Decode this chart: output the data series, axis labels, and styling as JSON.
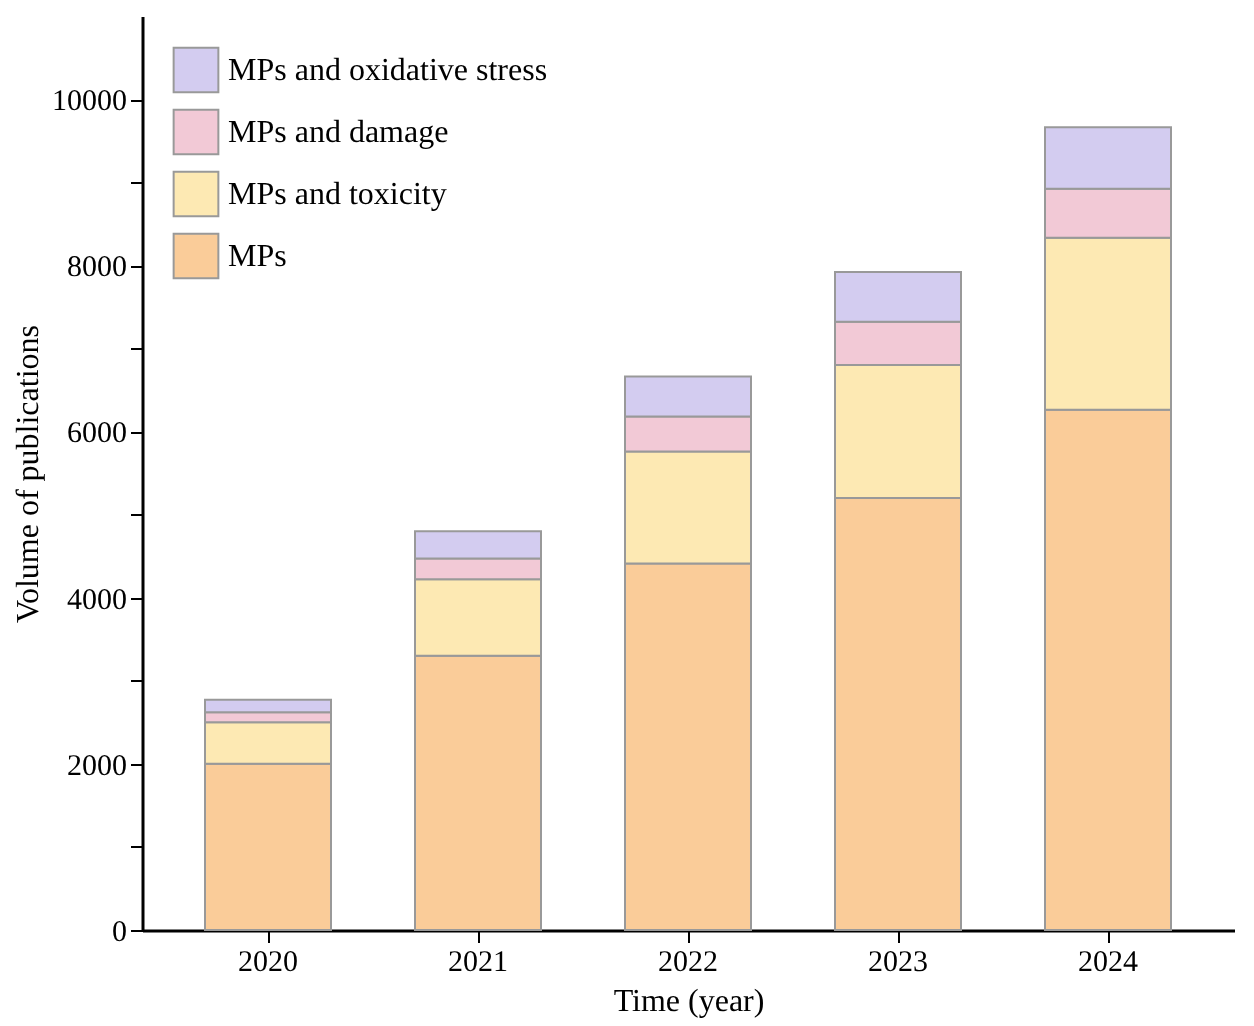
{
  "chart_data": {
    "type": "bar",
    "stacked": true,
    "xlabel": "Time (year)",
    "ylabel": "Volume of publications",
    "categories": [
      "2020",
      "2021",
      "2022",
      "2023",
      "2024"
    ],
    "series": [
      {
        "name": "MPs",
        "color": "#facc99",
        "values": [
          2000,
          3300,
          4410,
          5200,
          6260
        ]
      },
      {
        "name": "MPs and toxicity",
        "color": "#fde9b3",
        "values": [
          500,
          920,
          1350,
          1600,
          2070
        ]
      },
      {
        "name": "MPs and damage",
        "color": "#f2c9d6",
        "values": [
          120,
          250,
          420,
          520,
          590
        ]
      },
      {
        "name": "MPs and oxidative stress",
        "color": "#d3ccf0",
        "values": [
          150,
          330,
          480,
          600,
          740
        ]
      }
    ],
    "ylim": [
      0,
      11000
    ],
    "yticks": [
      0,
      {
        "value": 1000,
        "label": null
      },
      2000,
      {
        "value": 3000,
        "label": null
      },
      4000,
      {
        "value": 5000,
        "label": null
      },
      6000,
      {
        "value": 7000,
        "label": null
      },
      8000,
      {
        "value": 9000,
        "label": null
      },
      10000
    ],
    "grid": false,
    "legend": "top left"
  }
}
